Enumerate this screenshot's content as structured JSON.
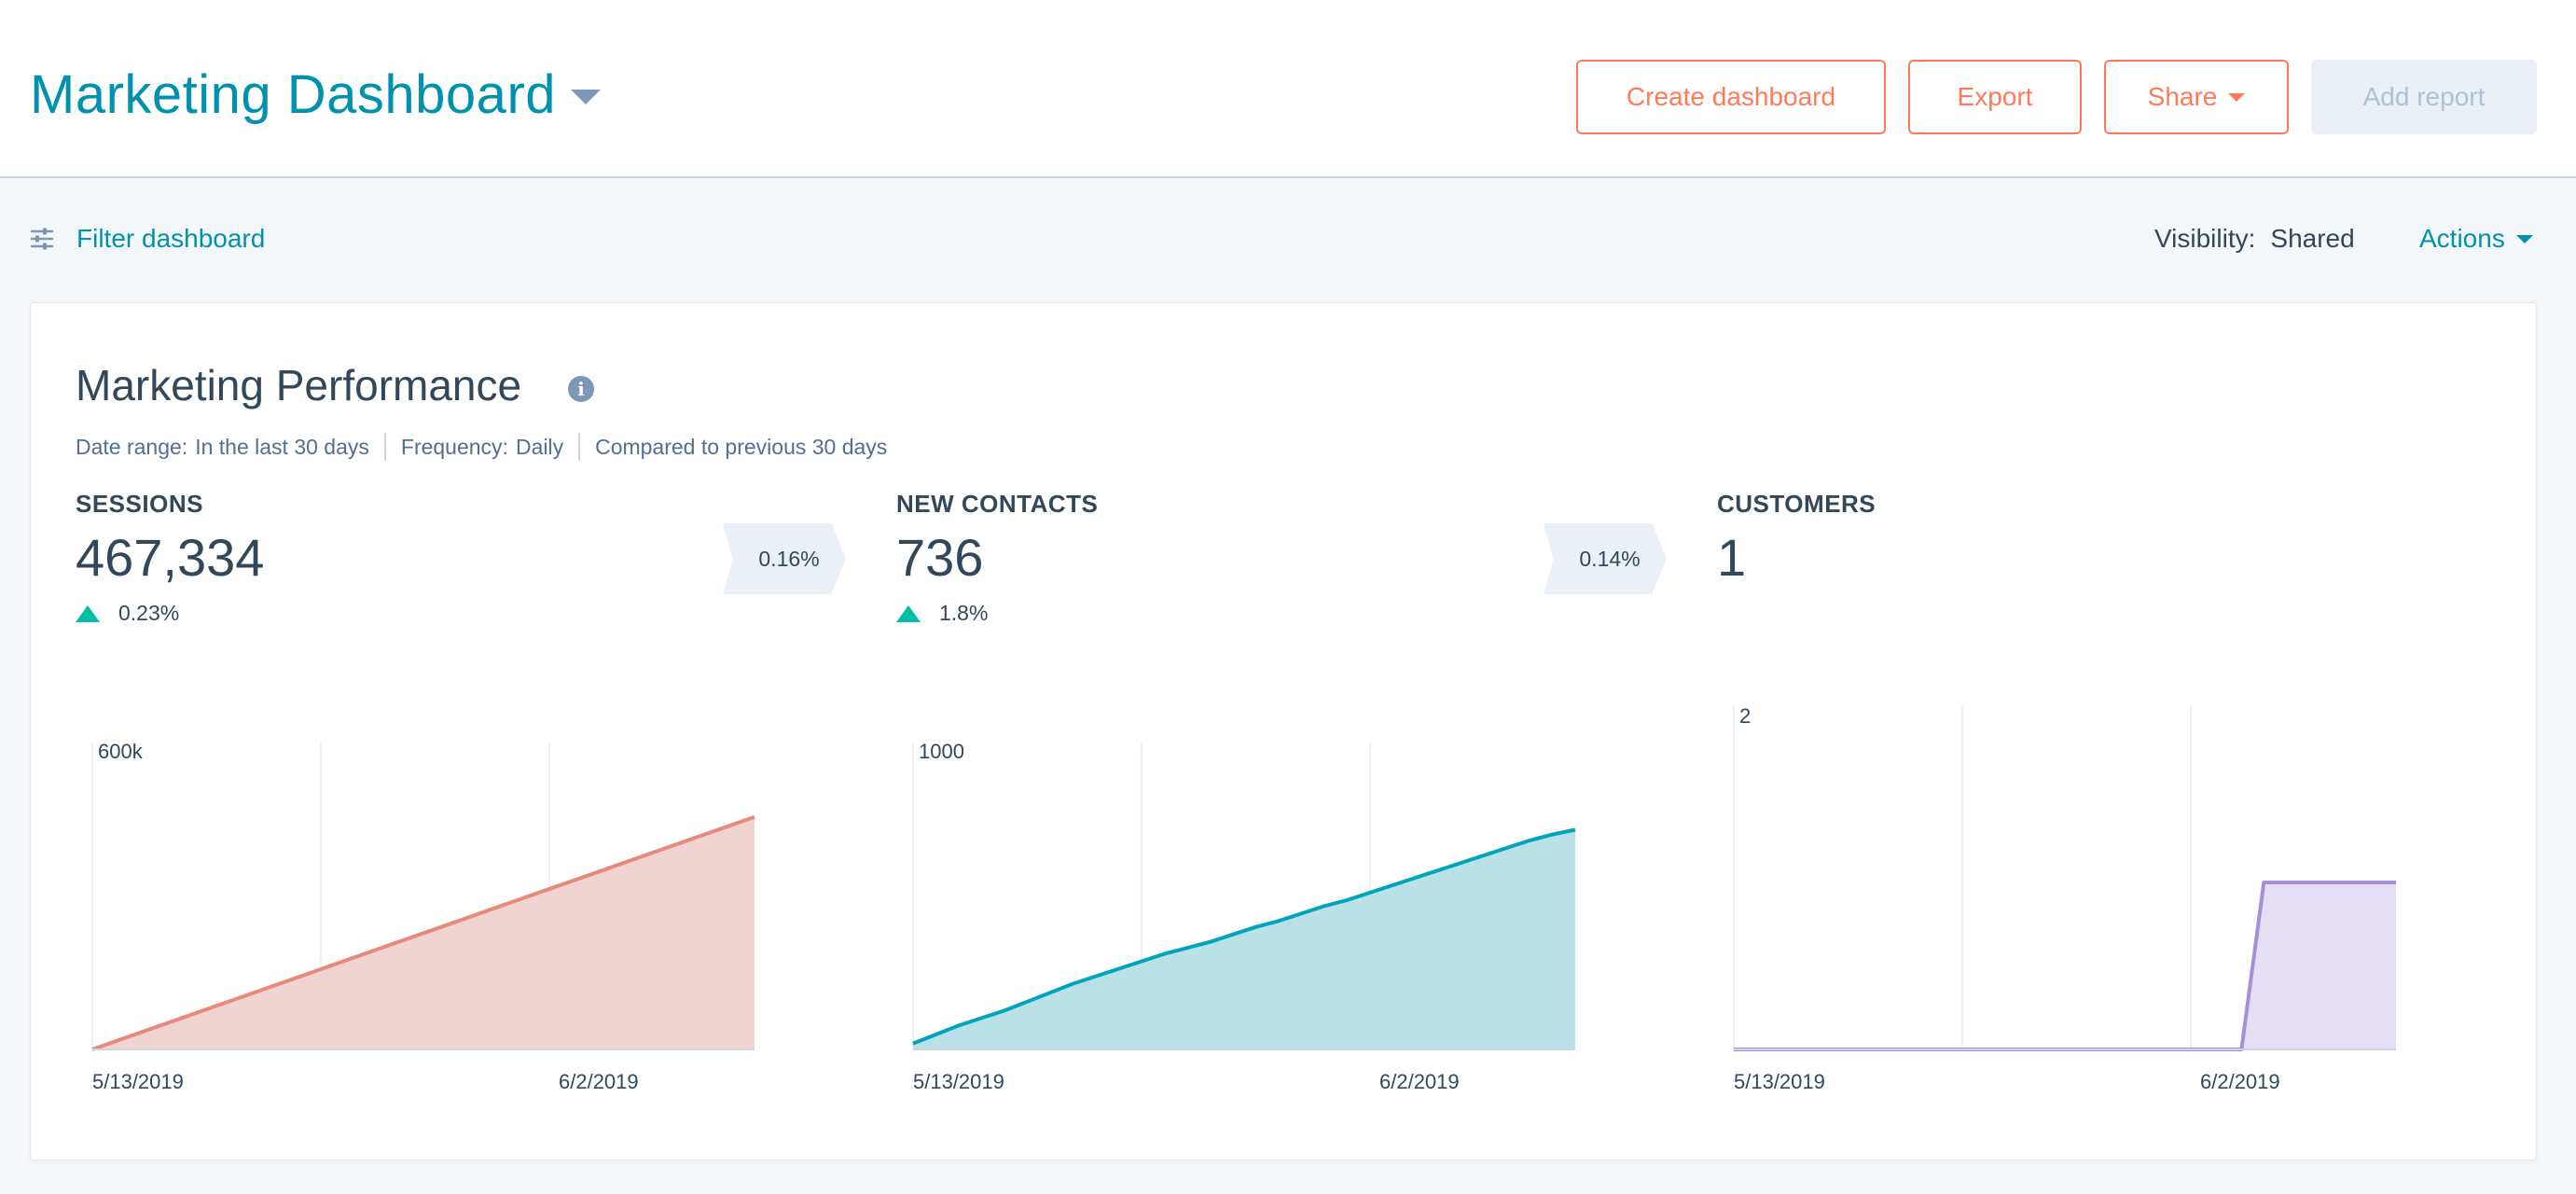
{
  "header": {
    "title": "Marketing Dashboard",
    "buttons": {
      "create": "Create dashboard",
      "export": "Export",
      "share": "Share",
      "add_report": "Add report"
    }
  },
  "toolbar": {
    "filter_label": "Filter dashboard",
    "visibility_label": "Visibility:",
    "visibility_value": "Shared",
    "actions_label": "Actions"
  },
  "card": {
    "title": "Marketing Performance",
    "meta": {
      "date_range_label": "Date range:",
      "date_range_value": "In the last 30 days",
      "frequency_label": "Frequency:",
      "frequency_value": "Daily",
      "compare_text": "Compared to previous 30 days"
    },
    "kpis": [
      {
        "label": "SESSIONS",
        "value": "467,334",
        "change": "0.23%",
        "trend": "up"
      },
      {
        "label": "NEW CONTACTS",
        "value": "736",
        "change": "1.8%",
        "trend": "up"
      },
      {
        "label": "CUSTOMERS",
        "value": "1"
      }
    ],
    "conversions": [
      "0.16%",
      "0.14%"
    ]
  },
  "colors": {
    "accent_teal": "#0091ae",
    "button_orange": "#ff7a59",
    "sessions_series": "#e9897a",
    "contacts_series": "#00a4bd",
    "customers_series": "#a48fd8",
    "positive": "#00bda5"
  },
  "chart_data": [
    {
      "type": "area",
      "series": [
        {
          "x": [
            "5/13/2019",
            "6/2/2019"
          ],
          "y_at_start": 0,
          "y_at_end": 467334
        }
      ],
      "ymax_label": "600k",
      "ylim": [
        0,
        600000
      ],
      "x_ticks": [
        "5/13/2019",
        "6/2/2019"
      ],
      "points_norm": [
        [
          0,
          0
        ],
        [
          1,
          467334
        ]
      ]
    },
    {
      "type": "area",
      "ymax_label": "1000",
      "ylim": [
        0,
        1000
      ],
      "x_ticks": [
        "5/13/2019",
        "6/2/2019"
      ],
      "values": [
        20,
        50,
        80,
        105,
        130,
        160,
        190,
        220,
        245,
        270,
        295,
        320,
        340,
        360,
        385,
        410,
        430,
        455,
        480,
        500,
        525,
        550,
        575,
        600,
        625,
        650,
        675,
        700,
        720,
        736
      ]
    },
    {
      "type": "area",
      "ymax_label": "2",
      "ylim": [
        0,
        2
      ],
      "x_ticks": [
        "5/13/2019",
        "6/2/2019"
      ],
      "values": [
        0,
        0,
        0,
        0,
        0,
        0,
        0,
        0,
        0,
        0,
        0,
        0,
        0,
        0,
        0,
        0,
        0,
        0,
        0,
        0,
        0,
        0,
        0,
        0,
        1,
        1,
        1,
        1,
        1,
        1,
        1
      ]
    }
  ]
}
